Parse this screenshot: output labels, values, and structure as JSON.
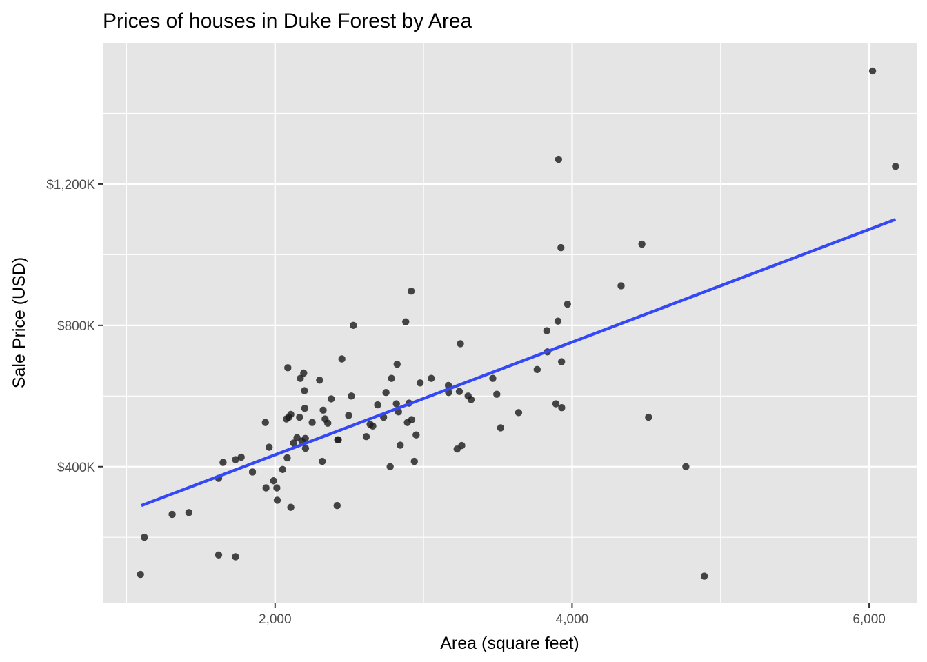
{
  "chart_data": {
    "type": "scatter",
    "title": "Prices of houses in Duke Forest by Area",
    "xlabel": "Area (square feet)",
    "ylabel": "Sale Price (USD)",
    "xlim": [
      840,
      6320
    ],
    "ylim": [
      15000,
      1600000
    ],
    "x_major_ticks": [
      2000,
      4000,
      6000
    ],
    "x_tick_labels": [
      "2,000",
      "4,000",
      "6,000"
    ],
    "x_minor_ticks": [
      1000,
      3000,
      5000
    ],
    "y_major_ticks": [
      400000,
      800000,
      1200000
    ],
    "y_tick_labels": [
      "$400K",
      "$800K",
      "$1,200K"
    ],
    "y_minor_ticks": [
      200000,
      600000,
      1000000,
      1400000
    ],
    "grid": true,
    "panel_background": "#e5e5e5",
    "point_color": "#1a1a1a",
    "line_color": "#3548f5",
    "trend_line": {
      "x": [
        1100,
        6178
      ],
      "y": [
        290000,
        1100000
      ]
    },
    "points": [
      [
        1094,
        95000
      ],
      [
        1120,
        200000
      ],
      [
        1307,
        265000
      ],
      [
        1420,
        270000
      ],
      [
        1620,
        150000
      ],
      [
        1734,
        145000
      ],
      [
        1620,
        367000
      ],
      [
        1650,
        412000
      ],
      [
        1734,
        420000
      ],
      [
        1772,
        427000
      ],
      [
        1848,
        385000
      ],
      [
        1935,
        525000
      ],
      [
        1939,
        340000
      ],
      [
        1960,
        455000
      ],
      [
        1990,
        360000
      ],
      [
        2012,
        340000
      ],
      [
        2015,
        305000
      ],
      [
        2051,
        392000
      ],
      [
        2076,
        535000
      ],
      [
        2082,
        425000
      ],
      [
        2086,
        680000
      ],
      [
        2093,
        540000
      ],
      [
        2106,
        548000
      ],
      [
        2106,
        285000
      ],
      [
        2125,
        467000
      ],
      [
        2148,
        482000
      ],
      [
        2165,
        540000
      ],
      [
        2170,
        650000
      ],
      [
        2181,
        472000
      ],
      [
        2193,
        665000
      ],
      [
        2198,
        615000
      ],
      [
        2200,
        565000
      ],
      [
        2204,
        480000
      ],
      [
        2205,
        452000
      ],
      [
        2250,
        525000
      ],
      [
        2300,
        645000
      ],
      [
        2318,
        415000
      ],
      [
        2324,
        560000
      ],
      [
        2337,
        535000
      ],
      [
        2355,
        523000
      ],
      [
        2378,
        592000
      ],
      [
        2418,
        290000
      ],
      [
        2422,
        476000
      ],
      [
        2426,
        476000
      ],
      [
        2450,
        705000
      ],
      [
        2496,
        545000
      ],
      [
        2514,
        600000
      ],
      [
        2527,
        800000
      ],
      [
        2614,
        485000
      ],
      [
        2640,
        520000
      ],
      [
        2658,
        515000
      ],
      [
        2691,
        575000
      ],
      [
        2731,
        540000
      ],
      [
        2747,
        610000
      ],
      [
        2775,
        400000
      ],
      [
        2784,
        650000
      ],
      [
        2817,
        578000
      ],
      [
        2822,
        690000
      ],
      [
        2831,
        555000
      ],
      [
        2843,
        461000
      ],
      [
        2880,
        810000
      ],
      [
        2891,
        525000
      ],
      [
        2902,
        580000
      ],
      [
        2917,
        897000
      ],
      [
        2920,
        533000
      ],
      [
        2938,
        415000
      ],
      [
        2950,
        490000
      ],
      [
        2977,
        637000
      ],
      [
        3052,
        650000
      ],
      [
        3167,
        630000
      ],
      [
        3169,
        610000
      ],
      [
        3226,
        450000
      ],
      [
        3241,
        613000
      ],
      [
        3248,
        748000
      ],
      [
        3257,
        460000
      ],
      [
        3300,
        600000
      ],
      [
        3320,
        590000
      ],
      [
        3466,
        650000
      ],
      [
        3493,
        605000
      ],
      [
        3519,
        510000
      ],
      [
        3640,
        553000
      ],
      [
        3765,
        675000
      ],
      [
        3830,
        785000
      ],
      [
        3834,
        725000
      ],
      [
        3891,
        578000
      ],
      [
        3905,
        812000
      ],
      [
        3909,
        1270000
      ],
      [
        3925,
        1020000
      ],
      [
        3930,
        567000
      ],
      [
        3929,
        697000
      ],
      [
        3969,
        860000
      ],
      [
        4330,
        912000
      ],
      [
        4470,
        1030000
      ],
      [
        4515,
        540000
      ],
      [
        4766,
        400000
      ],
      [
        4890,
        90000
      ],
      [
        6023,
        1520000
      ],
      [
        6178,
        1250000
      ]
    ]
  }
}
